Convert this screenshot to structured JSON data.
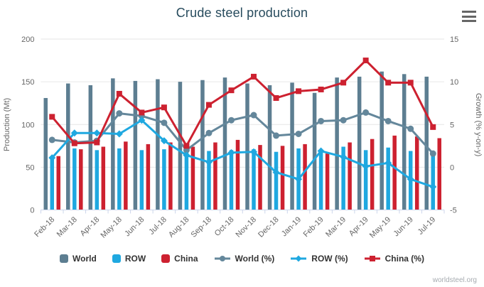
{
  "title": "Crude steel production",
  "watermark": "worldsteel.org",
  "colors": {
    "world_bar": "#5d7e91",
    "row_bar": "#1fa8e0",
    "china_bar": "#cd2130",
    "world_line": "#64879b",
    "row_line": "#1fa8e0",
    "china_line": "#cd2130",
    "grid": "#e6e6e6",
    "axis_line": "#ccd6eb",
    "axis_text": "#666666",
    "title_text": "#274b5d",
    "legend_text": "#333333",
    "watermark_text": "#a6abb0"
  },
  "chart_data": {
    "type": "combo bar+line (dual axis)",
    "categories": [
      "Feb-18",
      "Mar-18",
      "Apr-18",
      "May-18",
      "Jun-18",
      "Jul-18",
      "Aug-18",
      "Sep-18",
      "Oct-18",
      "Nov-18",
      "Dec-18",
      "Jan-19",
      "Feb-19",
      "Mar-19",
      "Apr-19",
      "May-19",
      "Jun-19",
      "Jul-19"
    ],
    "bar_series": [
      {
        "name": "World",
        "color": "#5d7e91",
        "values": [
          131,
          148,
          146,
          154,
          151,
          153,
          150,
          152,
          155,
          148,
          146,
          149,
          137,
          155,
          156,
          162,
          159,
          156
        ]
      },
      {
        "name": "ROW",
        "color": "#1fa8e0",
        "values": [
          62,
          72,
          70,
          72,
          70,
          71,
          68,
          69,
          70,
          71,
          68,
          72,
          67,
          74,
          70,
          73,
          69,
          67
        ]
      },
      {
        "name": "China",
        "color": "#cd2130",
        "values": [
          63,
          71,
          74,
          80,
          77,
          79,
          74,
          79,
          82,
          76,
          75,
          77,
          66,
          79,
          83,
          87,
          86,
          84
        ]
      }
    ],
    "line_series": [
      {
        "name": "World (%)",
        "color": "#64879b",
        "marker": "circle",
        "values": [
          3.2,
          2.9,
          3.1,
          6.3,
          6.0,
          5.2,
          2.0,
          4.0,
          5.5,
          6.1,
          3.7,
          3.9,
          5.4,
          5.5,
          6.4,
          5.4,
          4.5,
          1.6
        ]
      },
      {
        "name": "ROW (%)",
        "color": "#1fa8e0",
        "marker": "diamond",
        "values": [
          1.1,
          4.0,
          4.0,
          3.9,
          5.5,
          3.1,
          1.4,
          0.6,
          1.7,
          1.8,
          -0.6,
          -1.4,
          1.9,
          1.2,
          0.1,
          0.5,
          -1.4,
          -2.3
        ]
      },
      {
        "name": "China (%)",
        "color": "#cd2130",
        "marker": "square",
        "values": [
          5.9,
          2.8,
          2.9,
          8.6,
          6.4,
          7.0,
          2.5,
          7.3,
          9.0,
          10.6,
          8.1,
          8.9,
          9.1,
          9.9,
          12.5,
          9.9,
          9.9,
          4.7
        ]
      }
    ],
    "y_axis_left": {
      "label": "Production (Mt)",
      "ticks": [
        200,
        150,
        100,
        50,
        0
      ],
      "min": 0,
      "max": 200
    },
    "y_axis_right": {
      "label": "Growth (% y-on-y)",
      "ticks": [
        15,
        10,
        5,
        0,
        -5
      ],
      "min": -5,
      "max": 15
    },
    "legend": [
      "World",
      "ROW",
      "China",
      "World (%)",
      "ROW (%)",
      "China (%)"
    ],
    "grid": "horizontal gridlines on",
    "legend_position": "bottom center"
  }
}
